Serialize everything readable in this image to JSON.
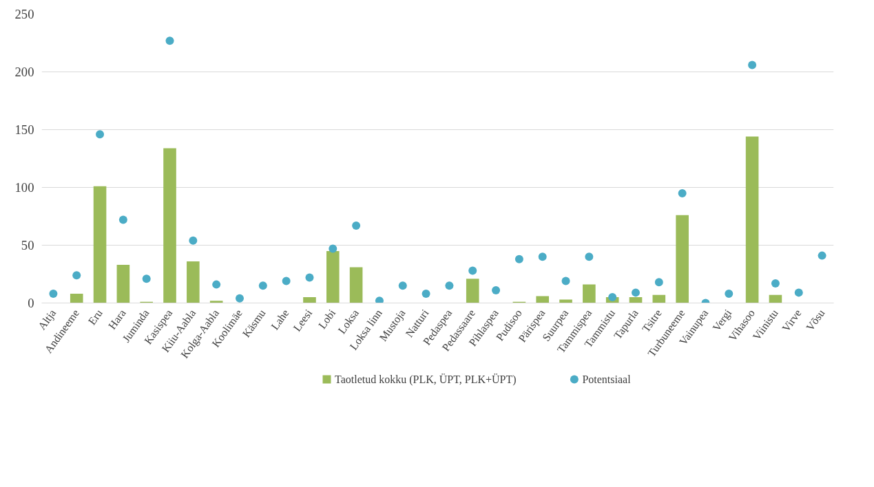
{
  "chart_data": {
    "type": "bar",
    "categories": [
      "Altja",
      "Andineeme",
      "Eru",
      "Hara",
      "Juminda",
      "Kasispea",
      "Kiiu-Aabla",
      "Kolga-Aabla",
      "Koolimäe",
      "Käsmu",
      "Lahe",
      "Leesi",
      "Lobi",
      "Loksa",
      "Loksa linn",
      "Mustoja",
      "Natturi",
      "Pedaspea",
      "Pedassaare",
      "Pihlaspea",
      "Pudisoo",
      "Pärispea",
      "Suurpea",
      "Tammispea",
      "Tammistu",
      "Tapurla",
      "Tsitre",
      "Turbuneeme",
      "Vainupea",
      "Vergi",
      "Vihasoo",
      "Viinistu",
      "Virve",
      "Võsu"
    ],
    "series": [
      {
        "name": "Taotletud kokku (PLK, ÜPT, PLK+ÜPT)",
        "color": "#9bbb59",
        "values": [
          0,
          8,
          101,
          33,
          1,
          134,
          36,
          2,
          0,
          0,
          0,
          5,
          45,
          31,
          0,
          0,
          0,
          0,
          21,
          0,
          1,
          6,
          3,
          16,
          5,
          5,
          7,
          76,
          0,
          0,
          144,
          7,
          0,
          0
        ]
      },
      {
        "name": "Potentsiaal",
        "type": "scatter",
        "color": "#4bacc6",
        "values": [
          8,
          24,
          146,
          72,
          21,
          227,
          54,
          16,
          4,
          15,
          19,
          22,
          47,
          67,
          2,
          15,
          8,
          15,
          28,
          11,
          38,
          40,
          19,
          40,
          5,
          9,
          18,
          95,
          0,
          8,
          206,
          17,
          9,
          41
        ]
      }
    ],
    "ylim": [
      0,
      250
    ],
    "yticks": [
      0,
      50,
      100,
      150,
      200,
      250
    ],
    "grid": "y",
    "legend": "bottom",
    "marker": "circle"
  }
}
